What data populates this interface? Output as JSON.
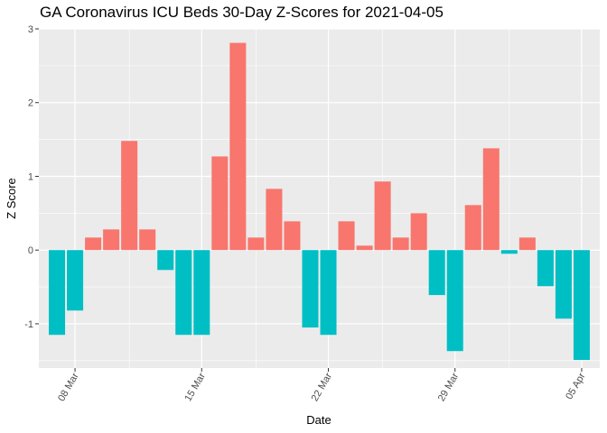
{
  "chart_data": {
    "type": "bar",
    "title": "GA Coronavirus ICU Beds 30-Day Z-Scores for 2021-04-05",
    "xlabel": "Date",
    "ylabel": "Z Score",
    "x_type": "date",
    "dates": [
      "2021-03-07",
      "2021-03-08",
      "2021-03-09",
      "2021-03-10",
      "2021-03-11",
      "2021-03-12",
      "2021-03-13",
      "2021-03-14",
      "2021-03-15",
      "2021-03-16",
      "2021-03-17",
      "2021-03-18",
      "2021-03-19",
      "2021-03-20",
      "2021-03-21",
      "2021-03-22",
      "2021-03-23",
      "2021-03-24",
      "2021-03-25",
      "2021-03-26",
      "2021-03-27",
      "2021-03-28",
      "2021-03-29",
      "2021-03-30",
      "2021-03-31",
      "2021-04-01",
      "2021-04-02",
      "2021-04-03",
      "2021-04-04",
      "2021-04-05"
    ],
    "values": [
      -1.15,
      -0.82,
      0.17,
      0.28,
      1.48,
      0.28,
      -0.27,
      -1.15,
      -1.15,
      1.27,
      2.81,
      0.17,
      0.83,
      0.39,
      -1.05,
      -1.15,
      0.39,
      0.06,
      0.93,
      0.17,
      0.5,
      -0.61,
      -1.37,
      0.61,
      1.38,
      -0.05,
      0.17,
      -0.49,
      -0.93,
      -1.49
    ],
    "x_ticks": [
      {
        "date": "2021-03-08",
        "label": "08 Mar"
      },
      {
        "date": "2021-03-15",
        "label": "15 Mar"
      },
      {
        "date": "2021-03-22",
        "label": "22 Mar"
      },
      {
        "date": "2021-03-29",
        "label": "29 Mar"
      },
      {
        "date": "2021-04-05",
        "label": "05 Apr"
      }
    ],
    "y_ticks": [
      -1,
      0,
      1,
      2,
      3
    ],
    "ylim": [
      -1.6,
      3.0
    ],
    "xlim": [
      "2021-03-06",
      "2021-04-06"
    ],
    "colors": {
      "positive": "#F8766D",
      "negative": "#00BFC4",
      "panel": "#EBEBEB",
      "grid": "#FFFFFF"
    },
    "grid": true,
    "legend": "none"
  }
}
